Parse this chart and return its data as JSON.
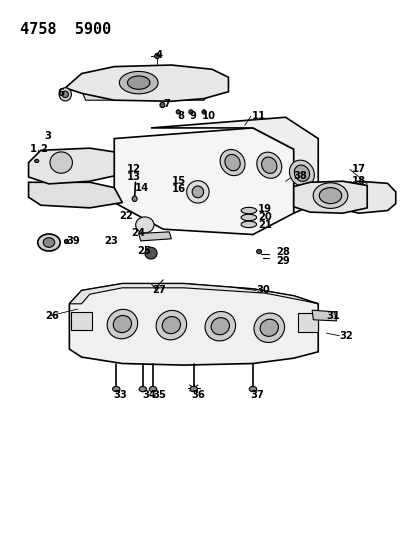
{
  "title": "4758  5900",
  "background_color": "#ffffff",
  "line_color": "#000000",
  "label_color": "#000000",
  "fig_width": 4.08,
  "fig_height": 5.33,
  "dpi": 100
}
